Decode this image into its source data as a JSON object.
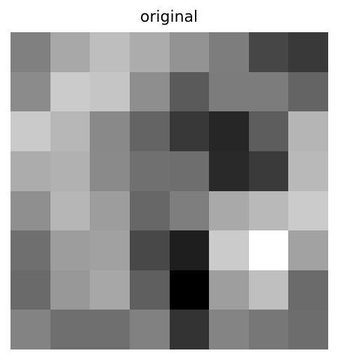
{
  "title": "original",
  "image": {
    "rows": 8,
    "cols": 8,
    "cells": [
      [
        "#808080",
        "#a8a8a8",
        "#bebebe",
        "#acacac",
        "#939393",
        "#7d7d7d",
        "#464646",
        "#393939"
      ],
      [
        "#8b8b8b",
        "#cbcbcb",
        "#c5c5c5",
        "#8e8e8e",
        "#5a5a5a",
        "#7c7c7c",
        "#7c7c7c",
        "#646464"
      ],
      [
        "#cacaca",
        "#b7b7b7",
        "#898989",
        "#646464",
        "#383838",
        "#262626",
        "#5d5d5d",
        "#b5b5b5"
      ],
      [
        "#acacac",
        "#b1b1b1",
        "#8a8a8a",
        "#707070",
        "#6e6e6e",
        "#292929",
        "#3a3a3a",
        "#b9b9b9"
      ],
      [
        "#8f8f8f",
        "#b6b6b6",
        "#9d9d9d",
        "#676767",
        "#7e7e7e",
        "#a9a9a9",
        "#b9b9b9",
        "#cbcbcb"
      ],
      [
        "#6f6f6f",
        "#9d9d9d",
        "#a1a1a1",
        "#484848",
        "#1e1e1e",
        "#cbcbcb",
        "#ffffff",
        "#a2a2a2"
      ],
      [
        "#6a6a6a",
        "#989898",
        "#a7a7a7",
        "#5f5f5f",
        "#000000",
        "#9e9e9e",
        "#bfbfbf",
        "#6b6b6b"
      ],
      [
        "#838383",
        "#6f6f6f",
        "#6f6f6f",
        "#818181",
        "#333333",
        "#848484",
        "#777777",
        "#6d6d6d"
      ]
    ]
  }
}
